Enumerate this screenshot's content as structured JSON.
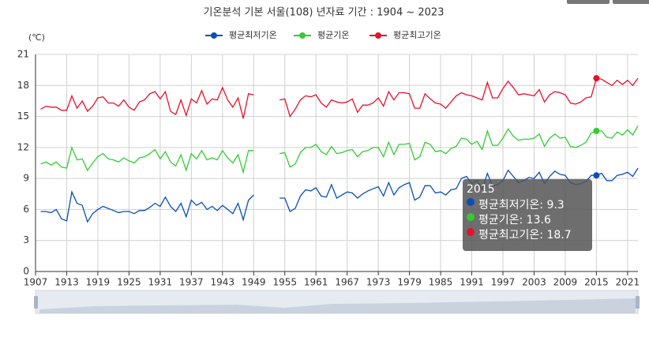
{
  "chart_data": {
    "type": "line",
    "title": "기온분석 기본 서울(108) 년자료 기간 : 1904 ~ 2023",
    "y_unit": "(℃)",
    "xlim": [
      1907,
      2023
    ],
    "xticks": [
      1907,
      1913,
      1919,
      1925,
      1931,
      1937,
      1943,
      1949,
      1955,
      1961,
      1967,
      1973,
      1979,
      1985,
      1991,
      1997,
      2003,
      2009,
      2015,
      2021
    ],
    "ylim": [
      0,
      21
    ],
    "yticks": [
      0,
      3,
      6,
      9,
      12,
      15,
      18,
      21
    ],
    "grid": true,
    "legend": "top",
    "x": [
      1908,
      1909,
      1910,
      1911,
      1912,
      1913,
      1914,
      1915,
      1916,
      1917,
      1918,
      1919,
      1920,
      1921,
      1922,
      1923,
      1924,
      1925,
      1926,
      1927,
      1928,
      1929,
      1930,
      1931,
      1932,
      1933,
      1934,
      1935,
      1936,
      1937,
      1938,
      1939,
      1940,
      1941,
      1942,
      1943,
      1944,
      1945,
      1946,
      1947,
      1948,
      1949,
      1950,
      1951,
      1952,
      1953,
      1954,
      1955,
      1956,
      1957,
      1958,
      1959,
      1960,
      1961,
      1962,
      1963,
      1964,
      1965,
      1966,
      1967,
      1968,
      1969,
      1970,
      1971,
      1972,
      1973,
      1974,
      1975,
      1976,
      1977,
      1978,
      1979,
      1980,
      1981,
      1982,
      1983,
      1984,
      1985,
      1986,
      1987,
      1988,
      1989,
      1990,
      1991,
      1992,
      1993,
      1994,
      1995,
      1996,
      1997,
      1998,
      1999,
      2000,
      2001,
      2002,
      2003,
      2004,
      2005,
      2006,
      2007,
      2008,
      2009,
      2010,
      2011,
      2012,
      2013,
      2014,
      2015,
      2016,
      2017,
      2018,
      2019,
      2020,
      2021,
      2022,
      2023
    ],
    "series": [
      {
        "name": "평균최저기온",
        "color": "#0b4fb5",
        "values": [
          5.8,
          5.8,
          5.7,
          6.0,
          5.1,
          4.9,
          7.7,
          6.6,
          6.4,
          4.8,
          5.6,
          6.0,
          6.3,
          6.1,
          5.9,
          5.7,
          5.8,
          5.8,
          5.6,
          5.9,
          5.9,
          6.2,
          6.6,
          6.3,
          7.2,
          6.3,
          5.8,
          6.6,
          5.3,
          6.9,
          6.4,
          6.7,
          6.0,
          6.3,
          5.9,
          6.4,
          6.0,
          5.6,
          6.6,
          5.0,
          6.9,
          7.4,
          null,
          null,
          null,
          null,
          7.1,
          7.1,
          5.8,
          6.1,
          7.3,
          7.9,
          7.8,
          8.1,
          7.3,
          7.2,
          8.4,
          7.1,
          7.4,
          7.7,
          7.6,
          7.1,
          7.5,
          7.8,
          8.0,
          8.2,
          7.3,
          8.6,
          7.4,
          8.1,
          8.4,
          8.6,
          6.9,
          7.2,
          8.3,
          8.3,
          7.6,
          7.7,
          7.4,
          7.9,
          8.0,
          9.0,
          9.2,
          8.5,
          8.8,
          7.9,
          9.5,
          8.3,
          8.4,
          8.8,
          9.8,
          9.2,
          8.6,
          8.8,
          9.1,
          9.0,
          9.6,
          8.5,
          9.2,
          9.7,
          9.4,
          9.3,
          8.6,
          8.4,
          8.5,
          8.7,
          9.3,
          9.3,
          9.5,
          8.8,
          8.8,
          9.3,
          9.4,
          9.6,
          9.2,
          10.0
        ]
      },
      {
        "name": "평균기온",
        "color": "#33cc33",
        "values": [
          10.4,
          10.6,
          10.3,
          10.6,
          10.1,
          10.0,
          12.0,
          10.8,
          10.9,
          9.8,
          10.5,
          11.1,
          11.4,
          10.9,
          10.8,
          10.6,
          11.0,
          10.7,
          10.5,
          11.0,
          11.1,
          11.4,
          11.8,
          10.9,
          11.6,
          10.6,
          10.2,
          11.3,
          9.8,
          11.4,
          10.9,
          11.7,
          10.8,
          11.0,
          10.8,
          11.7,
          11.0,
          10.5,
          11.3,
          9.6,
          11.7,
          11.7,
          null,
          null,
          null,
          null,
          11.4,
          11.5,
          10.1,
          10.4,
          11.5,
          12.0,
          12.0,
          12.3,
          11.6,
          11.3,
          12.1,
          11.4,
          11.5,
          11.7,
          11.8,
          11.1,
          11.6,
          11.7,
          12.0,
          12.0,
          11.1,
          12.5,
          11.3,
          12.3,
          12.3,
          12.4,
          10.8,
          11.1,
          12.5,
          12.3,
          11.6,
          11.7,
          11.4,
          11.9,
          12.1,
          12.9,
          12.8,
          12.3,
          12.6,
          11.8,
          13.6,
          12.2,
          12.2,
          12.9,
          13.8,
          13.1,
          12.7,
          12.8,
          12.8,
          12.9,
          13.3,
          12.1,
          12.9,
          13.3,
          12.9,
          13.0,
          12.1,
          12.0,
          12.2,
          12.5,
          13.4,
          13.6,
          13.6,
          13.0,
          12.9,
          13.5,
          13.2,
          13.7,
          13.2,
          14.1
        ]
      },
      {
        "name": "평균최고기온",
        "color": "#e8102a",
        "values": [
          15.7,
          16.0,
          15.9,
          15.9,
          15.6,
          15.6,
          17.0,
          15.8,
          16.5,
          15.5,
          16.0,
          16.8,
          16.9,
          16.3,
          16.3,
          16.0,
          16.6,
          15.9,
          15.6,
          16.4,
          16.6,
          17.2,
          17.4,
          16.7,
          17.4,
          15.5,
          15.2,
          16.6,
          15.1,
          16.7,
          16.3,
          17.5,
          16.2,
          16.7,
          16.6,
          17.8,
          16.6,
          15.9,
          16.8,
          14.8,
          17.2,
          17.1,
          null,
          null,
          null,
          null,
          16.6,
          16.7,
          15.0,
          15.7,
          16.6,
          17.0,
          16.9,
          17.1,
          16.3,
          15.9,
          16.6,
          16.4,
          16.3,
          16.4,
          16.7,
          15.4,
          16.1,
          16.1,
          16.3,
          16.8,
          16.0,
          17.4,
          16.6,
          17.3,
          17.3,
          17.2,
          15.8,
          15.8,
          17.2,
          16.7,
          16.3,
          16.2,
          15.8,
          16.4,
          17.0,
          17.3,
          17.1,
          17.0,
          16.8,
          16.6,
          18.3,
          16.8,
          16.8,
          17.7,
          18.4,
          17.8,
          17.1,
          17.2,
          17.1,
          17.0,
          17.6,
          16.4,
          17.1,
          17.4,
          17.3,
          17.1,
          16.3,
          16.2,
          16.4,
          16.8,
          16.9,
          18.7,
          18.6,
          18.3,
          18.0,
          18.5,
          18.1,
          18.5,
          18.0,
          18.7
        ]
      }
    ],
    "tooltip": {
      "index": 107,
      "title": "2015",
      "items": [
        "평균최저기온: 9.3",
        "평균기온: 13.6",
        "평균최고기온: 18.7"
      ]
    }
  }
}
